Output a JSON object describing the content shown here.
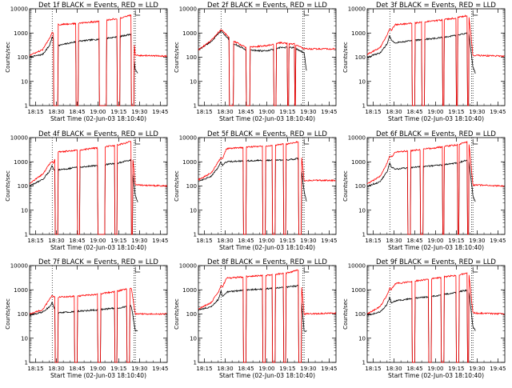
{
  "common": {
    "ylabel": "Counts/sec",
    "xlabel": "Start Time (02-Jun-03 18:10:40)",
    "xticks": [
      "18:15",
      "18:30",
      "18:45",
      "19:00",
      "19:15",
      "19:30",
      "19:45"
    ],
    "yticks": [
      "1",
      "10",
      "100",
      "1000",
      "10000"
    ],
    "ylim": [
      1,
      10000
    ],
    "yscale": "log",
    "xlim": [
      "18:10:40",
      "19:50:00"
    ],
    "colors": {
      "events": "#000000",
      "lld": "#ff0000"
    }
  },
  "chart_data": [
    {
      "type": "line",
      "title": "Det 1f BLACK = Events, RED = LLD",
      "gaps": [
        [
          "18:28:00",
          "18:31:00"
        ],
        [
          "18:44:00",
          "18:46:00"
        ],
        [
          "19:01:00",
          "19:06:00"
        ],
        [
          "19:14:00",
          "19:16:00"
        ],
        [
          "19:24:00",
          "19:26:00"
        ]
      ],
      "anneal_marks": [
        "18:27:00",
        "19:26:00",
        "19:27:00"
      ],
      "series": [
        {
          "name": "Events",
          "color": "#000000",
          "x": [
            "18:10:40",
            "18:20:00",
            "18:25:00",
            "18:27:00",
            "18:28:00",
            "18:31:00",
            "18:45:00",
            "19:00:00",
            "19:15:00",
            "19:24:00",
            "19:27:00",
            "19:29:00"
          ],
          "y": [
            100,
            130,
            300,
            700,
            500,
            300,
            450,
            550,
            700,
            900,
            30,
            20
          ]
        },
        {
          "name": "LLD",
          "color": "#ff0000",
          "x": [
            "18:10:40",
            "18:20:00",
            "18:25:00",
            "18:27:00",
            "18:28:00",
            "18:31:00",
            "18:45:00",
            "19:00:00",
            "19:15:00",
            "19:24:00",
            "19:27:00",
            "19:50:00"
          ],
          "y": [
            120,
            200,
            600,
            1100,
            1000,
            2200,
            2500,
            3000,
            4000,
            5500,
            120,
            110
          ]
        }
      ]
    },
    {
      "type": "line",
      "title": "Det 2f BLACK = Events, RED = LLD",
      "gaps": [
        [
          "18:33:00",
          "18:36:00"
        ],
        [
          "18:45:00",
          "18:48:00"
        ],
        [
          "19:05:00",
          "19:07:00"
        ],
        [
          "19:15:00",
          "19:16:00"
        ],
        [
          "19:20:00",
          "19:21:00"
        ]
      ],
      "anneal_marks": [
        "18:27:00",
        "19:26:00",
        "19:27:00"
      ],
      "series": [
        {
          "name": "Events",
          "color": "#000000",
          "x": [
            "18:10:40",
            "18:20:00",
            "18:27:00",
            "18:35:00",
            "18:45:00",
            "19:00:00",
            "19:10:00",
            "19:20:00",
            "19:27:00",
            "19:29:00"
          ],
          "y": [
            200,
            450,
            1200,
            400,
            200,
            180,
            250,
            250,
            150,
            20
          ]
        },
        {
          "name": "LLD",
          "color": "#ff0000",
          "x": [
            "18:10:40",
            "18:20:00",
            "18:27:00",
            "18:35:00",
            "18:45:00",
            "19:00:00",
            "19:10:00",
            "19:20:00",
            "19:27:00",
            "19:50:00"
          ],
          "y": [
            200,
            500,
            1400,
            500,
            250,
            300,
            400,
            350,
            220,
            220
          ]
        }
      ]
    },
    {
      "type": "line",
      "title": "Det 3f BLACK = Events, RED = LLD",
      "gaps": [
        [
          "18:43:00",
          "18:45:00"
        ],
        [
          "18:50:00",
          "18:52:00"
        ],
        [
          "19:05:00",
          "19:06:00"
        ],
        [
          "19:15:00",
          "19:16:00"
        ],
        [
          "19:23:00",
          "19:24:00"
        ]
      ],
      "anneal_marks": [
        "18:27:00",
        "19:26:00",
        "19:27:00"
      ],
      "series": [
        {
          "name": "Events",
          "color": "#000000",
          "x": [
            "18:10:40",
            "18:20:00",
            "18:25:00",
            "18:27:00",
            "18:28:00",
            "18:31:00",
            "18:45:00",
            "19:00:00",
            "19:15:00",
            "19:24:00",
            "19:27:00",
            "19:29:00"
          ],
          "y": [
            100,
            150,
            350,
            800,
            500,
            400,
            500,
            600,
            800,
            1000,
            40,
            20
          ]
        },
        {
          "name": "LLD",
          "color": "#ff0000",
          "x": [
            "18:10:40",
            "18:20:00",
            "18:25:00",
            "18:27:00",
            "18:28:00",
            "18:31:00",
            "18:45:00",
            "19:00:00",
            "19:15:00",
            "19:24:00",
            "19:27:00",
            "19:50:00"
          ],
          "y": [
            130,
            250,
            800,
            1500,
            1300,
            2200,
            2600,
            3200,
            4200,
            5500,
            120,
            110
          ]
        }
      ]
    },
    {
      "type": "line",
      "title": "Det 4f BLACK = Events, RED = LLD",
      "gaps": [
        [
          "18:29:00",
          "18:31:00"
        ],
        [
          "18:45:00",
          "18:47:00"
        ],
        [
          "19:00:00",
          "19:05:00"
        ],
        [
          "19:12:00",
          "19:14:00"
        ],
        [
          "19:24:00",
          "19:25:00"
        ]
      ],
      "anneal_marks": [
        "18:27:00",
        "19:26:00",
        "19:27:00"
      ],
      "series": [
        {
          "name": "Events",
          "color": "#000000",
          "x": [
            "18:10:40",
            "18:20:00",
            "18:25:00",
            "18:27:00",
            "18:28:00",
            "18:31:00",
            "18:45:00",
            "19:00:00",
            "19:15:00",
            "19:24:00",
            "19:27:00",
            "19:29:00"
          ],
          "y": [
            100,
            180,
            400,
            700,
            500,
            450,
            600,
            700,
            900,
            1200,
            40,
            20
          ]
        },
        {
          "name": "LLD",
          "color": "#ff0000",
          "x": [
            "18:10:40",
            "18:20:00",
            "18:25:00",
            "18:27:00",
            "18:28:00",
            "18:31:00",
            "18:45:00",
            "19:00:00",
            "19:15:00",
            "19:24:00",
            "19:27:00",
            "19:50:00"
          ],
          "y": [
            130,
            300,
            800,
            1000,
            900,
            2500,
            3000,
            3800,
            5000,
            7000,
            110,
            100
          ]
        }
      ]
    },
    {
      "type": "line",
      "title": "Det 5f BLACK = Events, RED = LLD",
      "gaps": [
        [
          "18:43:00",
          "18:45:00"
        ],
        [
          "18:57:00",
          "18:59:00"
        ],
        [
          "19:04:00",
          "19:06:00"
        ],
        [
          "19:12:00",
          "19:14:00"
        ],
        [
          "19:23:00",
          "19:25:00"
        ]
      ],
      "anneal_marks": [
        "18:27:00",
        "19:26:00",
        "19:27:00"
      ],
      "series": [
        {
          "name": "Events",
          "color": "#000000",
          "x": [
            "18:10:40",
            "18:20:00",
            "18:25:00",
            "18:27:00",
            "18:28:00",
            "18:31:00",
            "18:45:00",
            "19:00:00",
            "19:15:00",
            "19:24:00",
            "19:27:00",
            "19:29:00"
          ],
          "y": [
            160,
            250,
            600,
            1000,
            700,
            1000,
            1100,
            1150,
            1200,
            1400,
            60,
            20
          ]
        },
        {
          "name": "LLD",
          "color": "#ff0000",
          "x": [
            "18:10:40",
            "18:20:00",
            "18:25:00",
            "18:27:00",
            "18:28:00",
            "18:31:00",
            "18:45:00",
            "19:00:00",
            "19:15:00",
            "19:24:00",
            "19:27:00",
            "19:50:00"
          ],
          "y": [
            180,
            350,
            1000,
            1500,
            1300,
            3500,
            4000,
            4500,
            5500,
            7000,
            170,
            170
          ]
        }
      ]
    },
    {
      "type": "line",
      "title": "Det 6f BLACK = Events, RED = LLD",
      "gaps": [
        [
          "18:40:00",
          "18:42:00"
        ],
        [
          "18:49:00",
          "18:51:00"
        ],
        [
          "19:05:00",
          "19:06:00"
        ],
        [
          "19:16:00",
          "19:17:00"
        ],
        [
          "19:23:00",
          "19:24:00"
        ]
      ],
      "anneal_marks": [
        "18:27:00",
        "19:26:00",
        "19:27:00"
      ],
      "series": [
        {
          "name": "Events",
          "color": "#000000",
          "x": [
            "18:10:40",
            "18:20:00",
            "18:25:00",
            "18:27:00",
            "18:28:00",
            "18:31:00",
            "18:45:00",
            "19:00:00",
            "19:15:00",
            "19:24:00",
            "19:27:00",
            "19:29:00"
          ],
          "y": [
            100,
            150,
            400,
            900,
            600,
            500,
            600,
            700,
            900,
            1200,
            40,
            20
          ]
        },
        {
          "name": "LLD",
          "color": "#ff0000",
          "x": [
            "18:10:40",
            "18:20:00",
            "18:25:00",
            "18:27:00",
            "18:28:00",
            "18:31:00",
            "18:45:00",
            "19:00:00",
            "19:15:00",
            "19:24:00",
            "19:27:00",
            "19:50:00"
          ],
          "y": [
            120,
            250,
            900,
            1800,
            1500,
            2500,
            3000,
            3800,
            5000,
            7000,
            110,
            100
          ]
        }
      ]
    },
    {
      "type": "line",
      "title": "Det 7f BLACK = Events, RED = LLD",
      "gaps": [
        [
          "18:29:00",
          "18:31:00"
        ],
        [
          "18:43:00",
          "18:45:00"
        ],
        [
          "19:00:00",
          "19:02:00"
        ],
        [
          "19:12:00",
          "19:14:00"
        ],
        [
          "19:21:00",
          "19:23:00"
        ]
      ],
      "anneal_marks": [
        "18:27:00",
        "19:26:00",
        "19:27:00"
      ],
      "series": [
        {
          "name": "Events",
          "color": "#000000",
          "x": [
            "18:10:40",
            "18:20:00",
            "18:25:00",
            "18:27:00",
            "18:28:00",
            "18:31:00",
            "18:45:00",
            "19:00:00",
            "19:15:00",
            "19:24:00",
            "19:27:00",
            "19:29:00"
          ],
          "y": [
            90,
            120,
            200,
            300,
            200,
            110,
            130,
            150,
            180,
            220,
            20,
            20
          ]
        },
        {
          "name": "LLD",
          "color": "#ff0000",
          "x": [
            "18:10:40",
            "18:20:00",
            "18:25:00",
            "18:27:00",
            "18:28:00",
            "18:31:00",
            "18:45:00",
            "19:00:00",
            "19:15:00",
            "19:24:00",
            "19:27:00",
            "19:50:00"
          ],
          "y": [
            100,
            150,
            400,
            600,
            500,
            500,
            550,
            650,
            900,
            1200,
            100,
            100
          ]
        }
      ]
    },
    {
      "type": "line",
      "title": "Det 8f BLACK = Events, RED = LLD",
      "gaps": [
        [
          "18:43:00",
          "18:45:00"
        ],
        [
          "18:57:00",
          "18:59:00"
        ],
        [
          "19:04:00",
          "19:06:00"
        ],
        [
          "19:12:00",
          "19:14:00"
        ],
        [
          "19:23:00",
          "19:25:00"
        ]
      ],
      "anneal_marks": [
        "18:27:00",
        "19:26:00",
        "19:27:00"
      ],
      "series": [
        {
          "name": "Events",
          "color": "#000000",
          "x": [
            "18:10:40",
            "18:20:00",
            "18:25:00",
            "18:27:00",
            "18:28:00",
            "18:31:00",
            "18:45:00",
            "19:00:00",
            "19:15:00",
            "19:24:00",
            "19:27:00",
            "19:29:00"
          ],
          "y": [
            150,
            200,
            400,
            900,
            500,
            800,
            1000,
            1100,
            1300,
            1500,
            20,
            20
          ]
        },
        {
          "name": "LLD",
          "color": "#ff0000",
          "x": [
            "18:10:40",
            "18:20:00",
            "18:25:00",
            "18:27:00",
            "18:28:00",
            "18:31:00",
            "18:45:00",
            "19:00:00",
            "19:15:00",
            "19:24:00",
            "19:27:00",
            "19:50:00"
          ],
          "y": [
            160,
            300,
            800,
            1500,
            1300,
            3000,
            3500,
            4000,
            5000,
            7000,
            100,
            110
          ]
        }
      ]
    },
    {
      "type": "line",
      "title": "Det 9f BLACK = Events, RED = LLD",
      "gaps": [
        [
          "18:43:00",
          "18:45:00"
        ],
        [
          "18:55:00",
          "18:57:00"
        ],
        [
          "19:04:00",
          "19:06:00"
        ],
        [
          "19:15:00",
          "19:17:00"
        ],
        [
          "19:23:00",
          "19:24:00"
        ]
      ],
      "anneal_marks": [
        "18:27:00",
        "19:26:00",
        "19:27:00"
      ],
      "series": [
        {
          "name": "Events",
          "color": "#000000",
          "x": [
            "18:10:40",
            "18:20:00",
            "18:25:00",
            "18:27:00",
            "18:28:00",
            "18:31:00",
            "18:45:00",
            "19:00:00",
            "19:15:00",
            "19:24:00",
            "19:27:00",
            "19:29:00"
          ],
          "y": [
            90,
            120,
            250,
            500,
            300,
            350,
            450,
            550,
            800,
            1000,
            30,
            20
          ]
        },
        {
          "name": "LLD",
          "color": "#ff0000",
          "x": [
            "18:10:40",
            "18:20:00",
            "18:25:00",
            "18:27:00",
            "18:28:00",
            "18:31:00",
            "18:45:00",
            "19:00:00",
            "19:15:00",
            "19:24:00",
            "19:27:00",
            "19:50:00"
          ],
          "y": [
            100,
            200,
            600,
            1200,
            1000,
            1800,
            2300,
            3000,
            4000,
            5000,
            110,
            100
          ]
        }
      ]
    }
  ]
}
